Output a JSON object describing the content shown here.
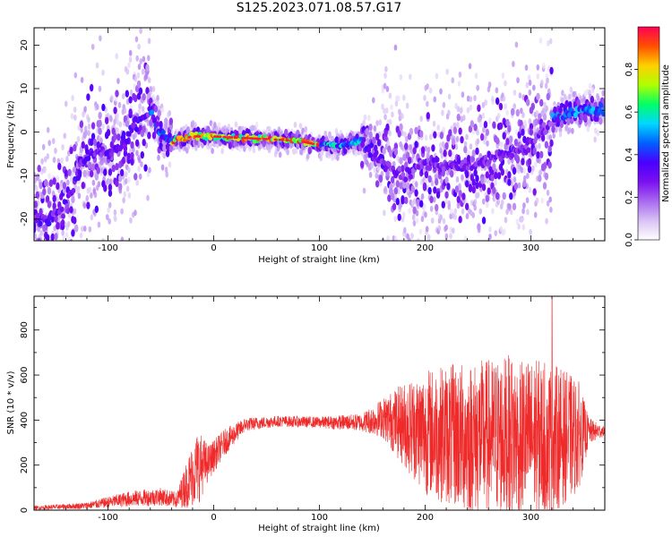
{
  "title": "S125.2023.071.08.57.G17",
  "chart_data": [
    {
      "type": "heatmap",
      "xlabel": "Height of straight line (km)",
      "ylabel": "Frequency (Hz)",
      "xlim": [
        -170,
        370
      ],
      "ylim": [
        -25,
        24
      ],
      "x_ticks": [
        -100,
        0,
        100,
        200,
        300
      ],
      "y_ticks": [
        -20,
        -10,
        0,
        10,
        20
      ],
      "colorbar": {
        "label": "Normalized spectral amplitude",
        "range": [
          0,
          1
        ],
        "ticks": [
          "0.0",
          "0.2",
          "0.4",
          "0.6",
          "0.8"
        ],
        "colormap": [
          "#ffffff",
          "#d8c2f4",
          "#a868f0",
          "#7a10f0",
          "#4a00ff",
          "#0060ff",
          "#00d8ff",
          "#00ff66",
          "#b0ff00",
          "#ffd000",
          "#ff5000",
          "#ff0055"
        ]
      },
      "ridge": [
        {
          "x": -160,
          "y": -20
        },
        {
          "x": -140,
          "y": -17
        },
        {
          "x": -120,
          "y": -5
        },
        {
          "x": -100,
          "y": -5
        },
        {
          "x": -85,
          "y": -3
        },
        {
          "x": -75,
          "y": 2
        },
        {
          "x": -60,
          "y": 5
        },
        {
          "x": -50,
          "y": -1
        },
        {
          "x": -40,
          "y": -2
        },
        {
          "x": -20,
          "y": -1
        },
        {
          "x": 0,
          "y": -1
        },
        {
          "x": 40,
          "y": -1.5
        },
        {
          "x": 80,
          "y": -2
        },
        {
          "x": 100,
          "y": -3
        },
        {
          "x": 120,
          "y": -3
        },
        {
          "x": 140,
          "y": -2
        },
        {
          "x": 160,
          "y": -7
        },
        {
          "x": 180,
          "y": -10
        },
        {
          "x": 200,
          "y": -7
        },
        {
          "x": 240,
          "y": -8
        },
        {
          "x": 280,
          "y": -5
        },
        {
          "x": 300,
          "y": -3
        },
        {
          "x": 320,
          "y": 3
        },
        {
          "x": 340,
          "y": 5
        },
        {
          "x": 370,
          "y": 5
        }
      ]
    },
    {
      "type": "line",
      "xlabel": "Height of straight line (km)",
      "ylabel": "SNR (10 * v/v)",
      "xlim": [
        -170,
        370
      ],
      "ylim": [
        0,
        950
      ],
      "x_ticks": [
        -100,
        0,
        100,
        200,
        300
      ],
      "y_ticks": [
        0,
        200,
        400,
        600,
        800
      ],
      "series": [
        {
          "color": "#ee2a2a",
          "envelope": [
            {
              "x": -170,
              "mean": 10,
              "spread": 8
            },
            {
              "x": -120,
              "mean": 20,
              "spread": 15
            },
            {
              "x": -80,
              "mean": 50,
              "spread": 35
            },
            {
              "x": -50,
              "mean": 60,
              "spread": 40
            },
            {
              "x": -35,
              "mean": 45,
              "spread": 35
            },
            {
              "x": -25,
              "mean": 120,
              "spread": 110
            },
            {
              "x": -15,
              "mean": 190,
              "spread": 170
            },
            {
              "x": -5,
              "mean": 210,
              "spread": 80
            },
            {
              "x": 10,
              "mean": 300,
              "spread": 60
            },
            {
              "x": 30,
              "mean": 380,
              "spread": 30
            },
            {
              "x": 60,
              "mean": 395,
              "spread": 25
            },
            {
              "x": 100,
              "mean": 390,
              "spread": 25
            },
            {
              "x": 140,
              "mean": 390,
              "spread": 40
            },
            {
              "x": 160,
              "mean": 410,
              "spread": 90
            },
            {
              "x": 180,
              "mean": 380,
              "spread": 190
            },
            {
              "x": 200,
              "mean": 350,
              "spread": 280
            },
            {
              "x": 240,
              "mean": 320,
              "spread": 340
            },
            {
              "x": 280,
              "mean": 330,
              "spread": 360
            },
            {
              "x": 320,
              "mean": 320,
              "spread": 340
            },
            {
              "x": 345,
              "mean": 330,
              "spread": 250
            },
            {
              "x": 355,
              "mean": 350,
              "spread": 60
            },
            {
              "x": 370,
              "mean": 350,
              "spread": 20
            }
          ],
          "peak": {
            "x": 320,
            "y": 950
          }
        }
      ]
    }
  ]
}
